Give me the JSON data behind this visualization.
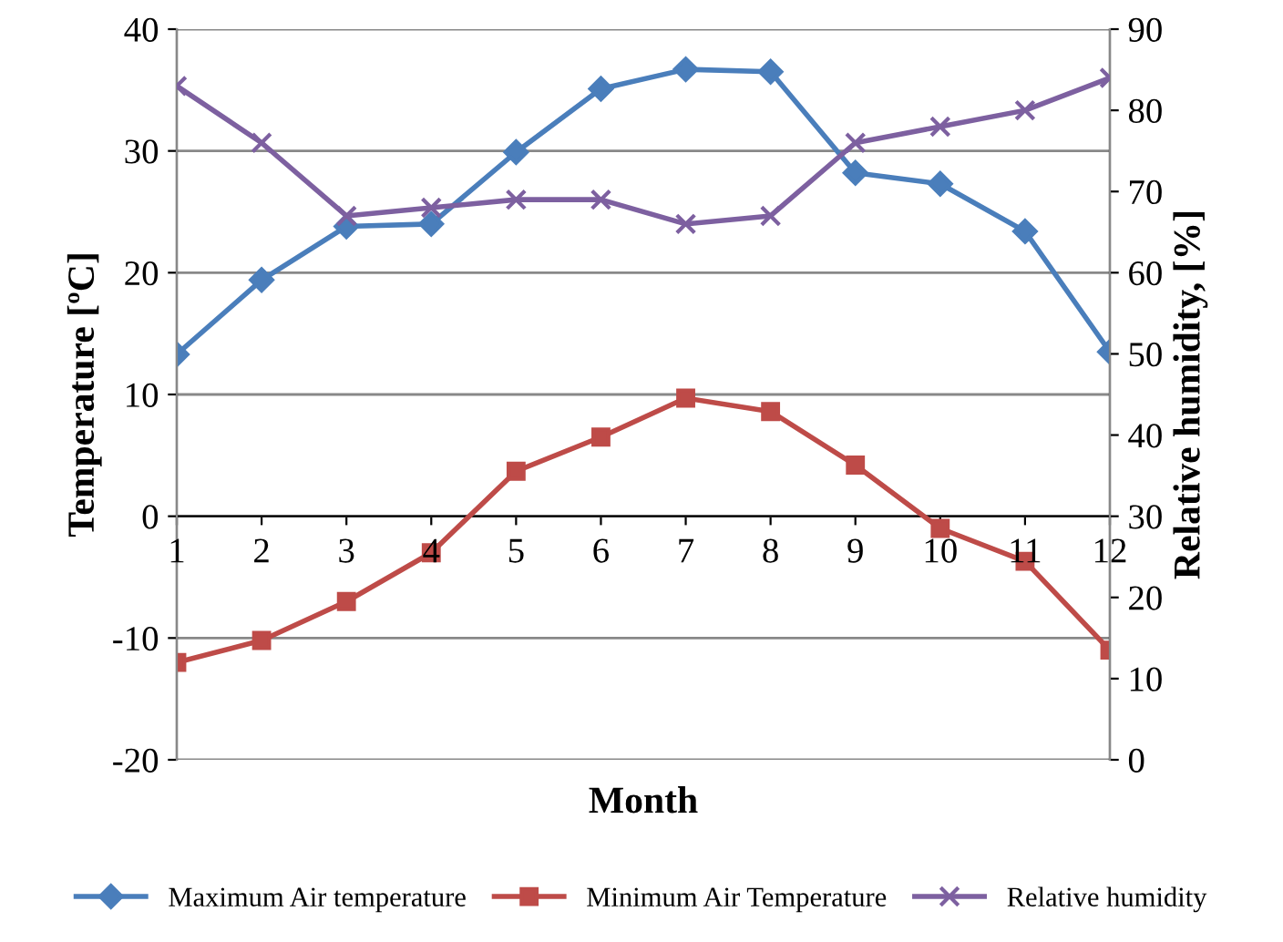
{
  "chart_data": {
    "type": "line",
    "xlabel": "Month",
    "ylabel": "Temperature [ºC]",
    "y2label": "Relative humidity, [%]",
    "categories": [
      "1",
      "2",
      "3",
      "4",
      "5",
      "6",
      "7",
      "8",
      "9",
      "10",
      "11",
      "12"
    ],
    "series": [
      {
        "name": "Maximum Air temperature",
        "color": "#4a7ebb",
        "marker": "diamond",
        "values": [
          13.3,
          19.4,
          23.8,
          24.0,
          29.9,
          35.1,
          36.7,
          36.5,
          28.2,
          27.3,
          23.4,
          13.5
        ]
      },
      {
        "name": "Minimum Air Temperature",
        "color": "#be4b48",
        "marker": "square",
        "values": [
          -12.0,
          -10.2,
          -7.0,
          -3.0,
          3.7,
          6.5,
          9.7,
          8.6,
          4.2,
          -1.0,
          -3.7,
          -11.0
        ]
      },
      {
        "name": "Relative humidity",
        "color": "#7d60a0",
        "marker": "cross",
        "axis": "y2",
        "values": [
          83,
          76,
          67,
          68,
          69,
          69,
          66,
          67,
          76,
          78,
          80,
          84
        ]
      }
    ],
    "ylim": [
      -20,
      40
    ],
    "yticks": [
      -20,
      -10,
      0,
      10,
      20,
      30,
      40
    ],
    "y2lim": [
      0,
      90
    ],
    "y2ticks": [
      0,
      10,
      20,
      30,
      40,
      50,
      60,
      70,
      80,
      90
    ],
    "grid": "y",
    "legend": "bottom",
    "line_style": "solid"
  }
}
